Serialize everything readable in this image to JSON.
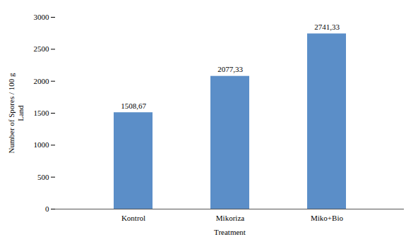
{
  "chart_data": {
    "type": "bar",
    "categories": [
      "Kontrol",
      "Mikoriza",
      "Miko+Bio"
    ],
    "values": [
      1508.67,
      2077.33,
      2741.33
    ],
    "value_labels": [
      "1508,67",
      "2077,33",
      "2741,33"
    ],
    "data_labels": true,
    "color": "#5b8ec8",
    "xlabel": "Treatment",
    "ylabel": "Number of Spores / 100 g\nLand",
    "ylim": [
      0,
      3000
    ],
    "yticks": [
      0,
      500,
      1000,
      1500,
      2000,
      2500,
      3000
    ]
  }
}
